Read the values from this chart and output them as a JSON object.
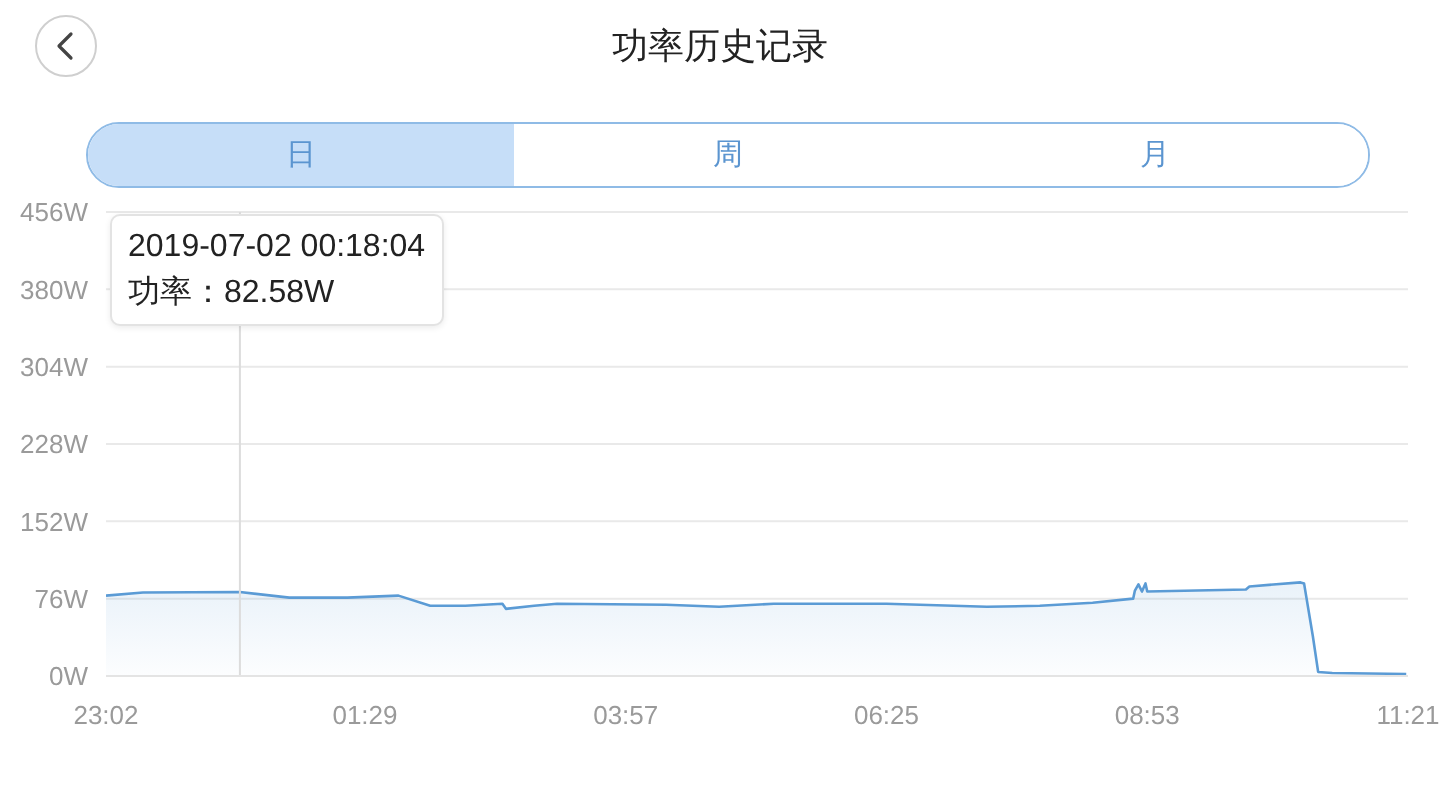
{
  "chart_data": {
    "type": "area",
    "title": "功率历史记录",
    "annotations": [
      "日",
      "周",
      "月",
      "2019-07-02 00:18:04",
      "功率：82.58W"
    ],
    "x": [
      "2019-07-01T23:02",
      "2019-07-01T23:23",
      "2019-07-02T00:18",
      "2019-07-02T00:46",
      "2019-07-02T01:19",
      "2019-07-02T01:48",
      "2019-07-02T02:06",
      "2019-07-02T02:26",
      "2019-07-02T02:47",
      "2019-07-02T02:49",
      "2019-07-02T03:05",
      "2019-07-02T03:18",
      "2019-07-02T04:20",
      "2019-07-02T04:50",
      "2019-07-02T05:21",
      "2019-07-02T06:25",
      "2019-07-02T07:22",
      "2019-07-02T07:52",
      "2019-07-02T08:22",
      "2019-07-02T08:45",
      "2019-07-02T08:46",
      "2019-07-02T08:48",
      "2019-07-02T08:50",
      "2019-07-02T08:52",
      "2019-07-02T08:53",
      "2019-07-02T09:49",
      "2019-07-02T09:51",
      "2019-07-02T10:20",
      "2019-07-02T10:22",
      "2019-07-02T10:27",
      "2019-07-02T10:30",
      "2019-07-02T10:38",
      "2019-07-02T11:20"
    ],
    "values": [
      79,
      82,
      82.58,
      77,
      77,
      79,
      69,
      69,
      71,
      66,
      69,
      71,
      70,
      68,
      71,
      71,
      68,
      69,
      72,
      76,
      84,
      90,
      83,
      91,
      83,
      85,
      88,
      92,
      91,
      39,
      4,
      3,
      2
    ],
    "color": "#5b9bd5",
    "xlim": [
      "2019-07-01T23:02",
      "2019-07-02T11:21"
    ],
    "xticks": [
      {
        "value": "2019-07-01T23:02",
        "label": "23:02"
      },
      {
        "value": "2019-07-02T01:29",
        "label": "01:29"
      },
      {
        "value": "2019-07-02T03:57",
        "label": "03:57"
      },
      {
        "value": "2019-07-02T06:25",
        "label": "06:25"
      },
      {
        "value": "2019-07-02T08:53",
        "label": "08:53"
      },
      {
        "value": "2019-07-02T11:21",
        "label": "11:21"
      }
    ],
    "ylim": [
      0,
      456
    ],
    "yticks": [
      {
        "value": 0,
        "label": "0W"
      },
      {
        "value": 76,
        "label": "76W"
      },
      {
        "value": 152,
        "label": "152W"
      },
      {
        "value": 228,
        "label": "228W"
      },
      {
        "value": 304,
        "label": "304W"
      },
      {
        "value": 380,
        "label": "380W"
      },
      {
        "value": 456,
        "label": "456W"
      }
    ],
    "grid": "y",
    "ref_lines": [
      {
        "axis": "x",
        "value": "2019-07-02T00:18",
        "color": "#dcdcdc"
      }
    ]
  }
}
